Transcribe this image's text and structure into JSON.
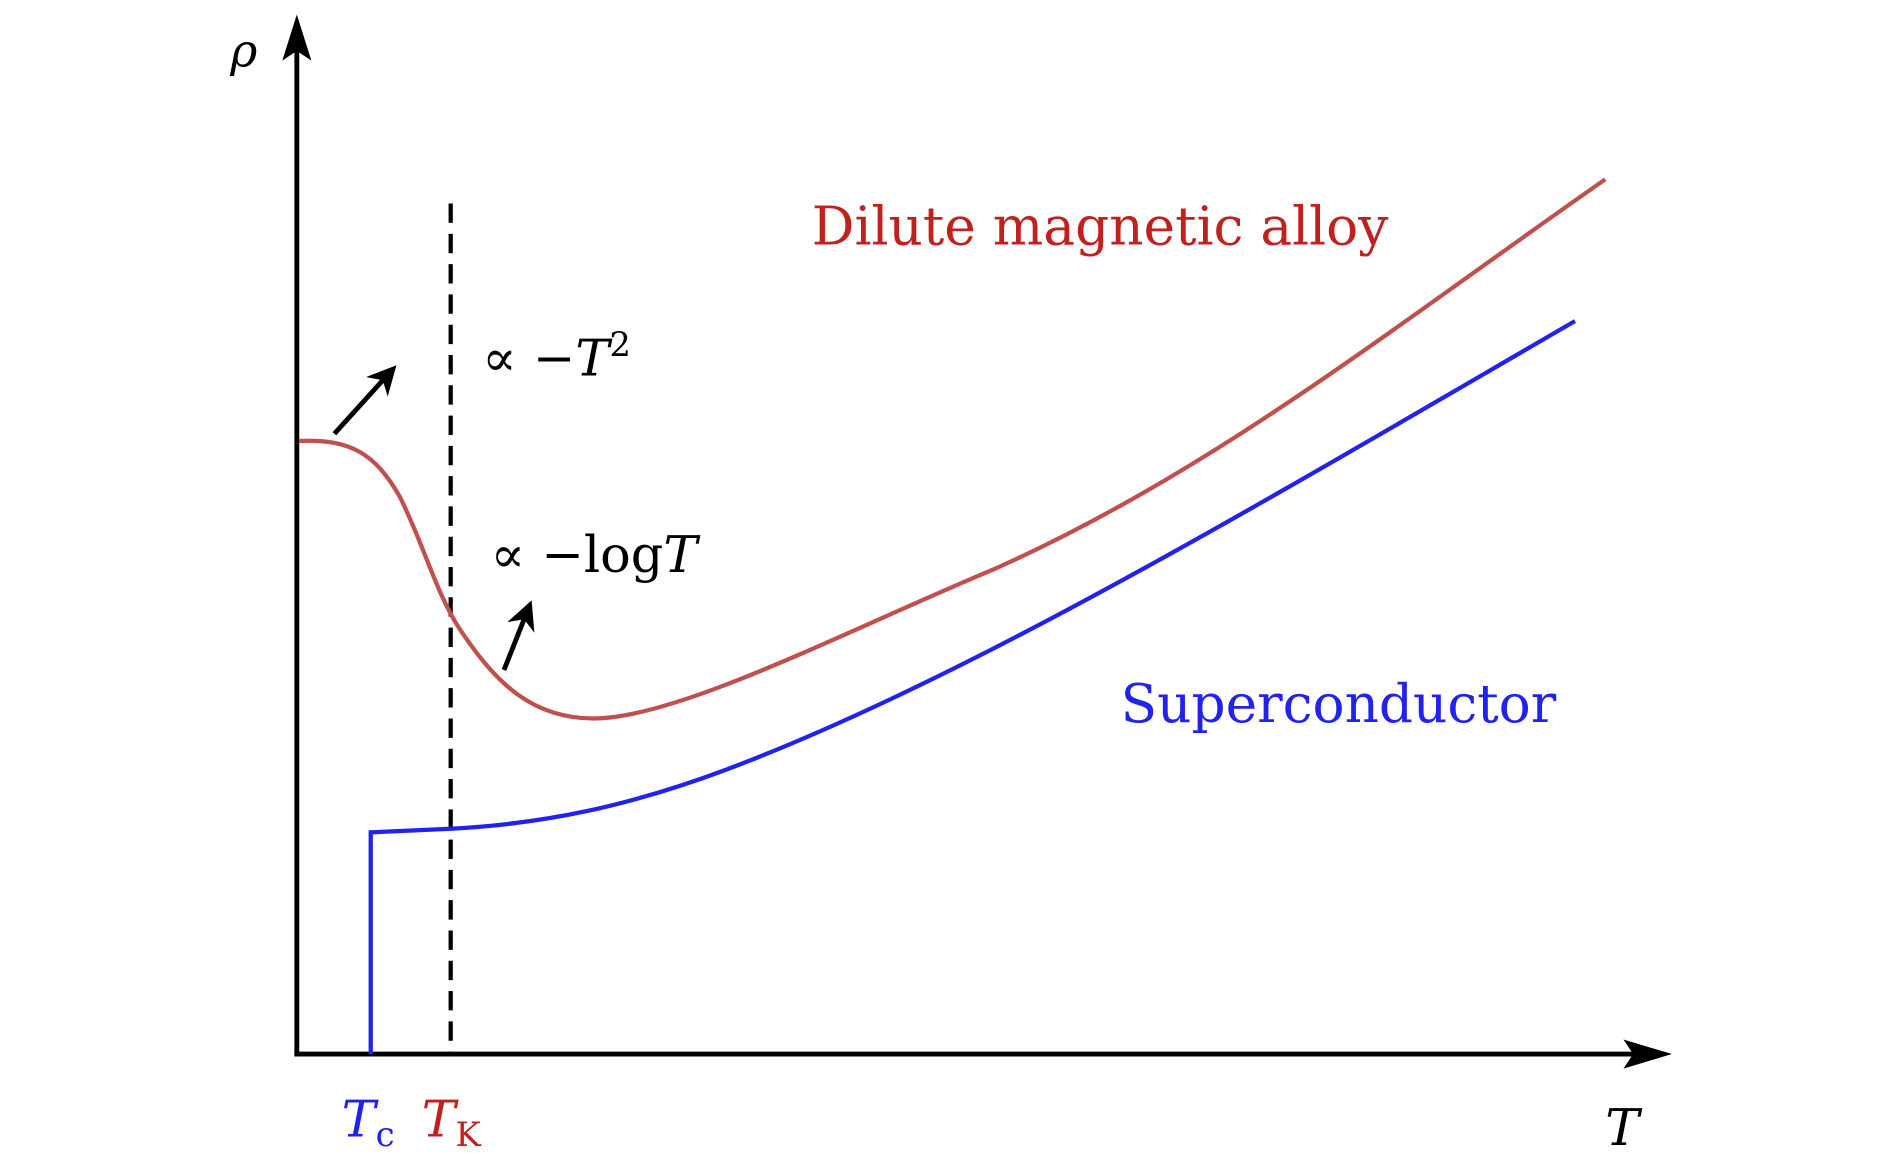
{
  "axes": {
    "y_label": "ρ",
    "x_label": "T"
  },
  "curves": [
    {
      "label": "Dilute magnetic alloy"
    },
    {
      "label": "Superconductor"
    }
  ],
  "annotations": [
    {
      "prefix": "∝ −",
      "symbol": "T",
      "superscript": "2"
    },
    {
      "prefix": "∝ −log",
      "symbol": "T"
    }
  ],
  "markers": [
    {
      "symbol": "T",
      "subscript": "c"
    },
    {
      "symbol": "T",
      "subscript": "K"
    }
  ]
}
